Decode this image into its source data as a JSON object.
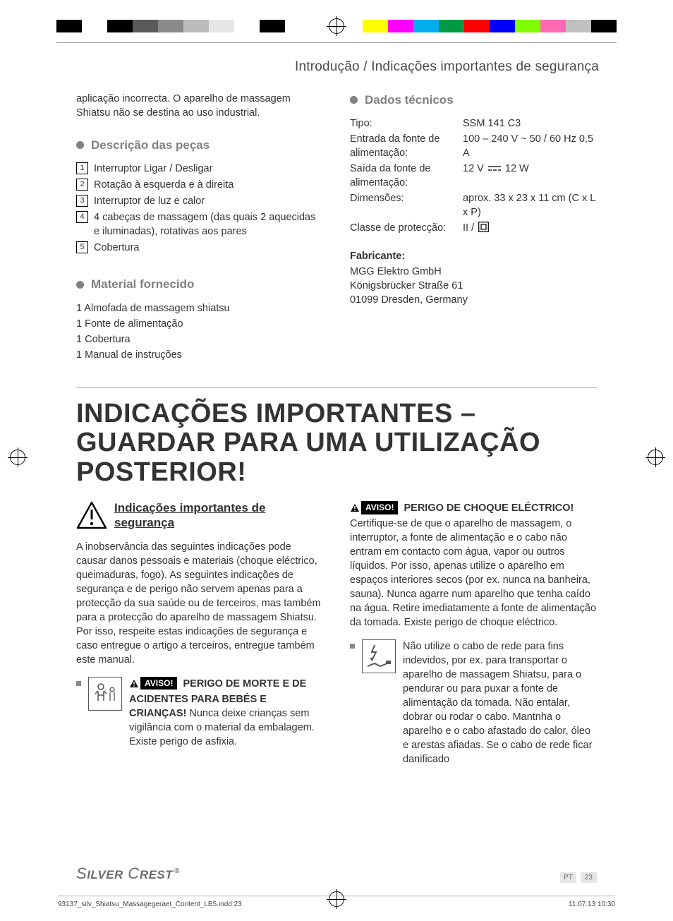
{
  "colors": {
    "gray": "#808080",
    "text": "#333333",
    "rule": "#aaaaaa",
    "black": "#000000"
  },
  "colorbars": {
    "left": [
      "#000000",
      "#ffffff",
      "#000000",
      "#5a5a5a",
      "#8a8a8a",
      "#bcbcbc",
      "#e5e5e5",
      "#ffffff",
      "#000000",
      "#ffffff"
    ],
    "right": [
      "#ffff00",
      "#ff00ff",
      "#00aeef",
      "#009944",
      "#ff0000",
      "#0000ff",
      "#7fff00",
      "#ff69b4",
      "#c0c0c0",
      "#000000"
    ]
  },
  "header": "Introdução / Indicações importantes de segurança",
  "lead": "aplicação incorrecta. O aparelho de massagem Shiatsu não se destina ao uso industrial.",
  "sec_parts_hd": "Descrição das peças",
  "parts": [
    "Interruptor Ligar / Desligar",
    "Rotação à esquerda e à direita",
    "Interruptor de luz e calor",
    "4 cabeças de massagem (das quais 2 aquecidas e iluminadas), rotativas aos pares",
    "Cobertura"
  ],
  "sec_supply_hd": "Material fornecido",
  "supply": [
    "1 Almofada de massagem shiatsu",
    "1 Fonte de alimentação",
    "1 Cobertura",
    "1 Manual de instruções"
  ],
  "sec_tech_hd": "Dados técnicos",
  "spec": {
    "tipo_k": "Tipo:",
    "tipo_v": "SSM 141 C3",
    "in_k": "Entrada da fonte de alimentação:",
    "in_v": "100 – 240 V ~ 50 / 60 Hz 0,5 A",
    "out_k": "Saída da fonte de alimentação:",
    "out_v": "12 V ⎓ 12 W",
    "dim_k": "Dimensões:",
    "dim_v": "aprox. 33 x 23 x 11 cm (C x L x P)",
    "class_k": "Classe de protecção:",
    "class_v": "II / "
  },
  "mfr_hd": "Fabricante:",
  "mfr_lines": [
    "MGG Elektro GmbH",
    "Königsbrücker Straße 61",
    "01099 Dresden, Germany"
  ],
  "big": "INDICAÇÕES IMPORTANTES – GUARDAR PARA UMA UTILIZAÇÃO POSTERIOR!",
  "safety_hd": "Indicações importantes de segurança",
  "safety_intro": "A inobservância das seguintes indicações pode causar danos pessoais e materiais (choque eléctrico, queimaduras, fogo). As seguintes indicações de segurança e de perigo não servem apenas para a protecção da sua saúde ou de terceiros, mas também para a protecção do aparelho de massagem Shiatsu. Por isso, respeite estas indicações de segurança e caso entregue o artigo a terceiros, entregue também este manual.",
  "aviso_label": "AVISO!",
  "warn1_bold": "PERIGO DE MORTE E DE ACIDENTES PARA BEBÉS E CRIANÇAS!",
  "warn1_rest": " Nunca deixe crianças sem vigilância com o material da embalagem. Existe perigo de asfixia.",
  "warn2_bold": "PERIGO DE CHOQUE ELÉCTRICO!",
  "warn2_rest": " Certifique-se de que o aparelho de massagem, o interruptor, a fonte de alimentação e o cabo não entram em contacto com água, vapor ou outros líquidos. Por isso, apenas utilize o aparelho em espaços interiores secos (por ex. nunca na banheira, sauna). Nunca agarre num aparelho que tenha caído na água. Retire imediatamente a fonte de alimentação da tomada. Existe perigo de choque eléctrico.",
  "warn3": "Não utilize o cabo de rede para fins indevidos, por ex. para transportar o aparelho de massagem Shiatsu, para o pendurar ou para puxar a fonte de alimentação da tomada. Não entalar, dobrar ou rodar o cabo. Mantnha o aparelho e o cabo afastado do calor, óleo e arestas afiadas. Se o cabo de rede ficar danificado",
  "brand": "SilverCrest",
  "page_lang": "PT",
  "page_num": "23",
  "print_left": "93137_silv_Shiatsu_Massagegeraet_Content_LB5.indd   23",
  "print_right": "11.07.13   10:30"
}
